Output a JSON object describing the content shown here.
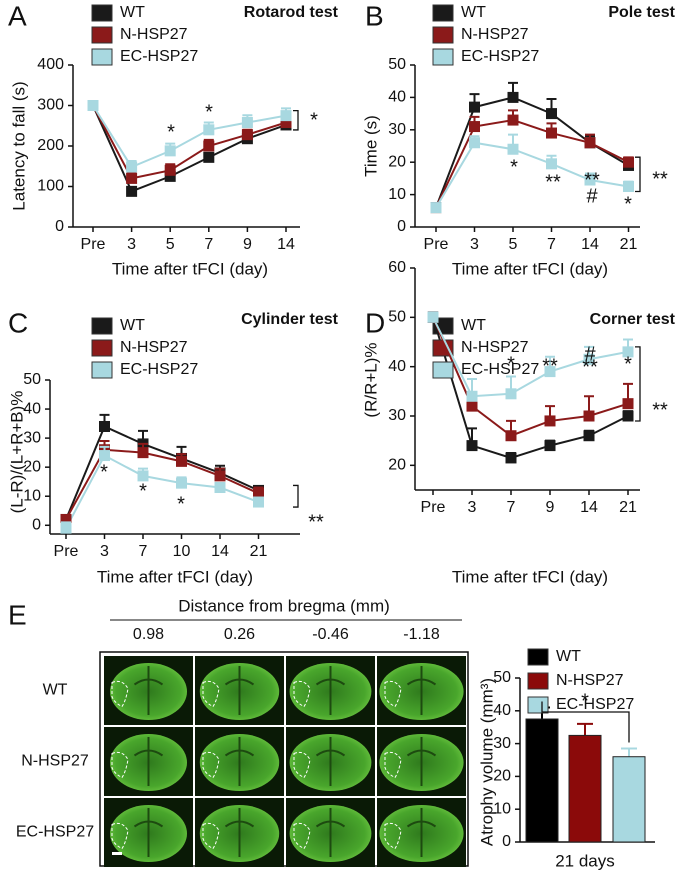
{
  "panel_labels": [
    "A",
    "B",
    "C",
    "D",
    "E"
  ],
  "image_grid": {
    "title": "Distance from bregma (mm)",
    "columns": [
      "0.98",
      "0.26",
      "-0.46",
      "-1.18"
    ],
    "rows": [
      "WT",
      "N-HSP27",
      "EC-HSP27"
    ]
  },
  "chart_data": [
    {
      "type": "line",
      "title": "Rotarod test",
      "xlabel": "Time after tFCI (day)",
      "ylabel": "Latency to fall (s)",
      "categories": [
        "Pre",
        "3",
        "5",
        "7",
        "9",
        "14"
      ],
      "ylim": [
        0,
        400
      ],
      "yticks": [
        0,
        100,
        200,
        300,
        400
      ],
      "series": [
        {
          "name": "WT",
          "color": "#1a1a1a",
          "values": [
            300,
            88,
            125,
            172,
            218,
            252
          ],
          "errors": [
            5,
            8,
            8,
            10,
            10,
            10
          ]
        },
        {
          "name": "N-HSP27",
          "color": "#8b1a1a",
          "values": [
            300,
            120,
            140,
            200,
            228,
            258
          ],
          "errors": [
            5,
            15,
            15,
            15,
            12,
            10
          ]
        },
        {
          "name": "EC-HSP27",
          "color": "#a8d8e0",
          "values": [
            300,
            148,
            188,
            240,
            258,
            275
          ],
          "errors": [
            5,
            15,
            18,
            18,
            18,
            18
          ]
        }
      ],
      "annotations": [
        "*",
        "*",
        "*"
      ]
    },
    {
      "type": "line",
      "title": "Pole test",
      "xlabel": "Time after tFCI (day)",
      "ylabel": "Time (s)",
      "categories": [
        "Pre",
        "3",
        "5",
        "7",
        "14",
        "21"
      ],
      "ylim": [
        0,
        50
      ],
      "yticks": [
        0,
        10,
        20,
        30,
        40,
        50
      ],
      "series": [
        {
          "name": "WT",
          "color": "#1a1a1a",
          "values": [
            6,
            37,
            40,
            35,
            26,
            19
          ],
          "errors": [
            1,
            4,
            4.5,
            4.5,
            2,
            1.5
          ]
        },
        {
          "name": "N-HSP27",
          "color": "#8b1a1a",
          "values": [
            6,
            31,
            33,
            29,
            26,
            20
          ],
          "errors": [
            1,
            3,
            3,
            3,
            2.5,
            1.5
          ]
        },
        {
          "name": "EC-HSP27",
          "color": "#a8d8e0",
          "values": [
            6,
            26,
            24,
            19.5,
            14.5,
            12.5
          ],
          "errors": [
            1,
            2,
            4.5,
            2.5,
            2,
            1.5
          ]
        }
      ],
      "annotations": [
        "*",
        "**",
        "**",
        "#",
        "*",
        "**"
      ]
    },
    {
      "type": "line",
      "title": "Cylinder test",
      "xlabel": "Time after tFCI (day)",
      "ylabel": "(L-R)/(L+R+B)%",
      "categories": [
        "Pre",
        "3",
        "7",
        "10",
        "14",
        "21"
      ],
      "ylim": [
        -3,
        50
      ],
      "yticks": [
        0,
        10,
        20,
        30,
        40,
        50
      ],
      "series": [
        {
          "name": "WT",
          "color": "#1a1a1a",
          "values": [
            2,
            34,
            28,
            23,
            18,
            12
          ],
          "errors": [
            1,
            4,
            4.5,
            4,
            2.5,
            1.5
          ]
        },
        {
          "name": "N-HSP27",
          "color": "#8b1a1a",
          "values": [
            2,
            26,
            25,
            22,
            17,
            11
          ],
          "errors": [
            1,
            3,
            3,
            2.5,
            2.5,
            2
          ]
        },
        {
          "name": "EC-HSP27",
          "color": "#a8d8e0",
          "values": [
            -1,
            24,
            17,
            14.5,
            13,
            8
          ],
          "errors": [
            2,
            3,
            2.5,
            2,
            1.5,
            1.5
          ]
        }
      ],
      "annotations": [
        "*",
        "*",
        "*",
        "**"
      ]
    },
    {
      "type": "line",
      "title": "Corner test",
      "xlabel": "Time after tFCI (day)",
      "ylabel": "(R/R+L)%",
      "categories": [
        "Pre",
        "3",
        "7",
        "9",
        "14",
        "21"
      ],
      "ylim": [
        15,
        60
      ],
      "yticks": [
        20,
        30,
        40,
        50,
        60
      ],
      "series": [
        {
          "name": "WT",
          "color": "#1a1a1a",
          "values": [
            50,
            24,
            21.5,
            24,
            26,
            30
          ],
          "errors": [
            1,
            3.5,
            1,
            1,
            1,
            1
          ]
        },
        {
          "name": "N-HSP27",
          "color": "#8b1a1a",
          "values": [
            50,
            32,
            26,
            29,
            30,
            32.5
          ],
          "errors": [
            1,
            2,
            3,
            3,
            4,
            4
          ]
        },
        {
          "name": "EC-HSP27",
          "color": "#a8d8e0",
          "values": [
            50,
            34,
            34.5,
            39,
            41.5,
            43
          ],
          "errors": [
            1,
            3.5,
            3.5,
            3,
            2.5,
            2.5
          ]
        }
      ],
      "annotations": [
        "*",
        "**",
        "#",
        "**",
        "*",
        "**"
      ]
    },
    {
      "type": "bar",
      "xlabel": "21 days",
      "ylabel": "Atrophy volume (mm³)",
      "categories": [
        "WT",
        "N-HSP27",
        "EC-HSP27"
      ],
      "colors": [
        "#000000",
        "#8b0a0a",
        "#a8d8e0"
      ],
      "values": [
        37.5,
        32.5,
        26
      ],
      "errors": [
        3.5,
        3.5,
        2.5
      ],
      "ylim": [
        0,
        50
      ],
      "yticks": [
        0,
        10,
        20,
        30,
        40,
        50
      ],
      "annotations": [
        "*"
      ]
    }
  ]
}
